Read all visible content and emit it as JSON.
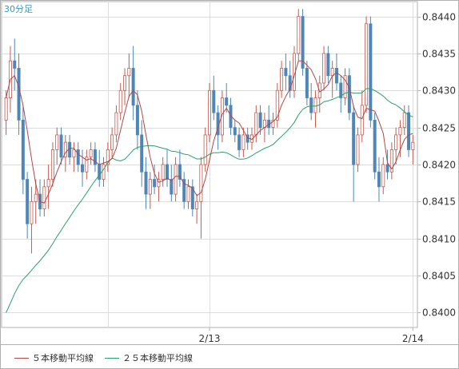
{
  "timeframe_label": "30分足",
  "legend": {
    "ma5_label": "５本移動平均線",
    "ma25_label": "２５本移動平均線"
  },
  "colors": {
    "up_candle": "#ffffff",
    "up_border": "#c85a50",
    "down_candle": "#4f86b8",
    "ma5": "#b04848",
    "ma25": "#2aa06a",
    "grid": "#dcdcdc",
    "frame": "#b0b0b0"
  },
  "chart_data": {
    "type": "candlestick",
    "y_axis": {
      "min": 0.8398,
      "max": 0.8442,
      "ticks": [
        0.84,
        0.8405,
        0.841,
        0.8415,
        0.842,
        0.8425,
        0.843,
        0.8435,
        0.844
      ],
      "tick_labels": [
        "0.8400",
        "0.8405",
        "0.8410",
        "0.8415",
        "0.8420",
        "0.8425",
        "0.8430",
        "0.8435",
        "0.8440"
      ],
      "position": "right"
    },
    "x_axis": {
      "labels": [
        {
          "text": "2/13",
          "index": 48
        },
        {
          "text": "2/14",
          "index": 96
        }
      ]
    },
    "grid": true,
    "candles": [
      [
        0.8426,
        0.843,
        0.8424,
        0.8429
      ],
      [
        0.8429,
        0.8436,
        0.8427,
        0.8434
      ],
      [
        0.8434,
        0.8437,
        0.843,
        0.8433
      ],
      [
        0.8433,
        0.8435,
        0.8424,
        0.8426
      ],
      [
        0.8426,
        0.8428,
        0.8416,
        0.8418
      ],
      [
        0.8418,
        0.8419,
        0.841,
        0.8412
      ],
      [
        0.8412,
        0.8417,
        0.8408,
        0.8415
      ],
      [
        0.8415,
        0.8418,
        0.8412,
        0.8416
      ],
      [
        0.8416,
        0.8418,
        0.8413,
        0.8414
      ],
      [
        0.8414,
        0.8418,
        0.8413,
        0.8417
      ],
      [
        0.8417,
        0.842,
        0.8414,
        0.8418
      ],
      [
        0.8418,
        0.8423,
        0.8417,
        0.8422
      ],
      [
        0.8422,
        0.8425,
        0.842,
        0.8424
      ],
      [
        0.8424,
        0.8425,
        0.842,
        0.8421
      ],
      [
        0.8421,
        0.8424,
        0.8419,
        0.8423
      ],
      [
        0.8423,
        0.8424,
        0.842,
        0.8421
      ],
      [
        0.8421,
        0.8423,
        0.8419,
        0.8422
      ],
      [
        0.8422,
        0.8423,
        0.8419,
        0.842
      ],
      [
        0.842,
        0.8422,
        0.8417,
        0.8419
      ],
      [
        0.8419,
        0.8422,
        0.8418,
        0.8421
      ],
      [
        0.8421,
        0.8423,
        0.842,
        0.8422
      ],
      [
        0.8422,
        0.8423,
        0.8419,
        0.842
      ],
      [
        0.842,
        0.8422,
        0.8417,
        0.8418
      ],
      [
        0.8418,
        0.8421,
        0.8417,
        0.842
      ],
      [
        0.842,
        0.8423,
        0.8419,
        0.8422
      ],
      [
        0.8422,
        0.8425,
        0.8421,
        0.8424
      ],
      [
        0.8424,
        0.8428,
        0.8423,
        0.8427
      ],
      [
        0.8427,
        0.8431,
        0.8426,
        0.843
      ],
      [
        0.843,
        0.8433,
        0.8428,
        0.8432
      ],
      [
        0.8432,
        0.8435,
        0.8429,
        0.8433
      ],
      [
        0.8433,
        0.8436,
        0.8426,
        0.8428
      ],
      [
        0.8428,
        0.843,
        0.8422,
        0.8424
      ],
      [
        0.8424,
        0.8426,
        0.8417,
        0.8419
      ],
      [
        0.8419,
        0.8421,
        0.8414,
        0.8416
      ],
      [
        0.8416,
        0.8419,
        0.8414,
        0.8418
      ],
      [
        0.8418,
        0.842,
        0.8416,
        0.8417
      ],
      [
        0.8417,
        0.8419,
        0.8415,
        0.8418
      ],
      [
        0.8418,
        0.8421,
        0.8417,
        0.842
      ],
      [
        0.842,
        0.8422,
        0.8417,
        0.8418
      ],
      [
        0.8418,
        0.842,
        0.8415,
        0.8416
      ],
      [
        0.8416,
        0.8421,
        0.8415,
        0.842
      ],
      [
        0.842,
        0.8422,
        0.8417,
        0.8418
      ],
      [
        0.8418,
        0.8419,
        0.8414,
        0.8415
      ],
      [
        0.8415,
        0.8418,
        0.8414,
        0.8417
      ],
      [
        0.8417,
        0.8418,
        0.8413,
        0.8414
      ],
      [
        0.8414,
        0.8416,
        0.8412,
        0.8415
      ],
      [
        0.8415,
        0.8421,
        0.841,
        0.842
      ],
      [
        0.842,
        0.8425,
        0.8419,
        0.8424
      ],
      [
        0.8424,
        0.8431,
        0.8423,
        0.843
      ],
      [
        0.843,
        0.8432,
        0.8426,
        0.8427
      ],
      [
        0.8427,
        0.8428,
        0.8422,
        0.8424
      ],
      [
        0.8424,
        0.843,
        0.8423,
        0.8429
      ],
      [
        0.8429,
        0.8431,
        0.8427,
        0.8428
      ],
      [
        0.8428,
        0.8429,
        0.8424,
        0.8425
      ],
      [
        0.8425,
        0.8426,
        0.8423,
        0.8424
      ],
      [
        0.8424,
        0.8425,
        0.8421,
        0.8422
      ],
      [
        0.8422,
        0.8425,
        0.8421,
        0.8424
      ],
      [
        0.8424,
        0.8425,
        0.8422,
        0.8423
      ],
      [
        0.8423,
        0.8425,
        0.8422,
        0.8424
      ],
      [
        0.8424,
        0.8428,
        0.8423,
        0.8427
      ],
      [
        0.8427,
        0.8428,
        0.8424,
        0.8425
      ],
      [
        0.8425,
        0.8427,
        0.8423,
        0.8426
      ],
      [
        0.8426,
        0.8428,
        0.8424,
        0.8425
      ],
      [
        0.8425,
        0.8427,
        0.8424,
        0.8426
      ],
      [
        0.8426,
        0.8431,
        0.8425,
        0.843
      ],
      [
        0.843,
        0.8434,
        0.8429,
        0.8433
      ],
      [
        0.8433,
        0.8435,
        0.843,
        0.8432
      ],
      [
        0.8432,
        0.8434,
        0.8429,
        0.843
      ],
      [
        0.843,
        0.8436,
        0.8429,
        0.8435
      ],
      [
        0.8435,
        0.8441,
        0.8434,
        0.844
      ],
      [
        0.844,
        0.8441,
        0.8432,
        0.8433
      ],
      [
        0.8433,
        0.8434,
        0.8428,
        0.8429
      ],
      [
        0.8429,
        0.8431,
        0.8426,
        0.8427
      ],
      [
        0.8427,
        0.843,
        0.8425,
        0.8429
      ],
      [
        0.8429,
        0.8432,
        0.8427,
        0.8431
      ],
      [
        0.8431,
        0.8436,
        0.843,
        0.8435
      ],
      [
        0.8435,
        0.8436,
        0.8431,
        0.8432
      ],
      [
        0.8432,
        0.8434,
        0.8429,
        0.8433
      ],
      [
        0.8433,
        0.8435,
        0.843,
        0.8431
      ],
      [
        0.8431,
        0.8432,
        0.8427,
        0.8429
      ],
      [
        0.8429,
        0.8433,
        0.8428,
        0.8432
      ],
      [
        0.8432,
        0.8433,
        0.8426,
        0.8427
      ],
      [
        0.8427,
        0.8428,
        0.8415,
        0.842
      ],
      [
        0.842,
        0.8425,
        0.8419,
        0.8424
      ],
      [
        0.8424,
        0.843,
        0.8423,
        0.8428
      ],
      [
        0.8428,
        0.844,
        0.8427,
        0.8439
      ],
      [
        0.8439,
        0.844,
        0.8425,
        0.8426
      ],
      [
        0.8426,
        0.8427,
        0.8418,
        0.8419
      ],
      [
        0.8419,
        0.8421,
        0.8415,
        0.8417
      ],
      [
        0.8417,
        0.8421,
        0.8416,
        0.842
      ],
      [
        0.842,
        0.8422,
        0.8418,
        0.8419
      ],
      [
        0.8419,
        0.8423,
        0.8418,
        0.8422
      ],
      [
        0.8422,
        0.8425,
        0.842,
        0.8424
      ],
      [
        0.8424,
        0.8426,
        0.8421,
        0.8425
      ],
      [
        0.8425,
        0.8428,
        0.8424,
        0.8427
      ],
      [
        0.8427,
        0.8428,
        0.8421,
        0.8422
      ],
      [
        0.8422,
        0.8424,
        0.842,
        0.8423
      ]
    ],
    "ma5": {
      "name": "５本移動平均線"
    },
    "ma25": {
      "name": "２５本移動平均線"
    }
  }
}
